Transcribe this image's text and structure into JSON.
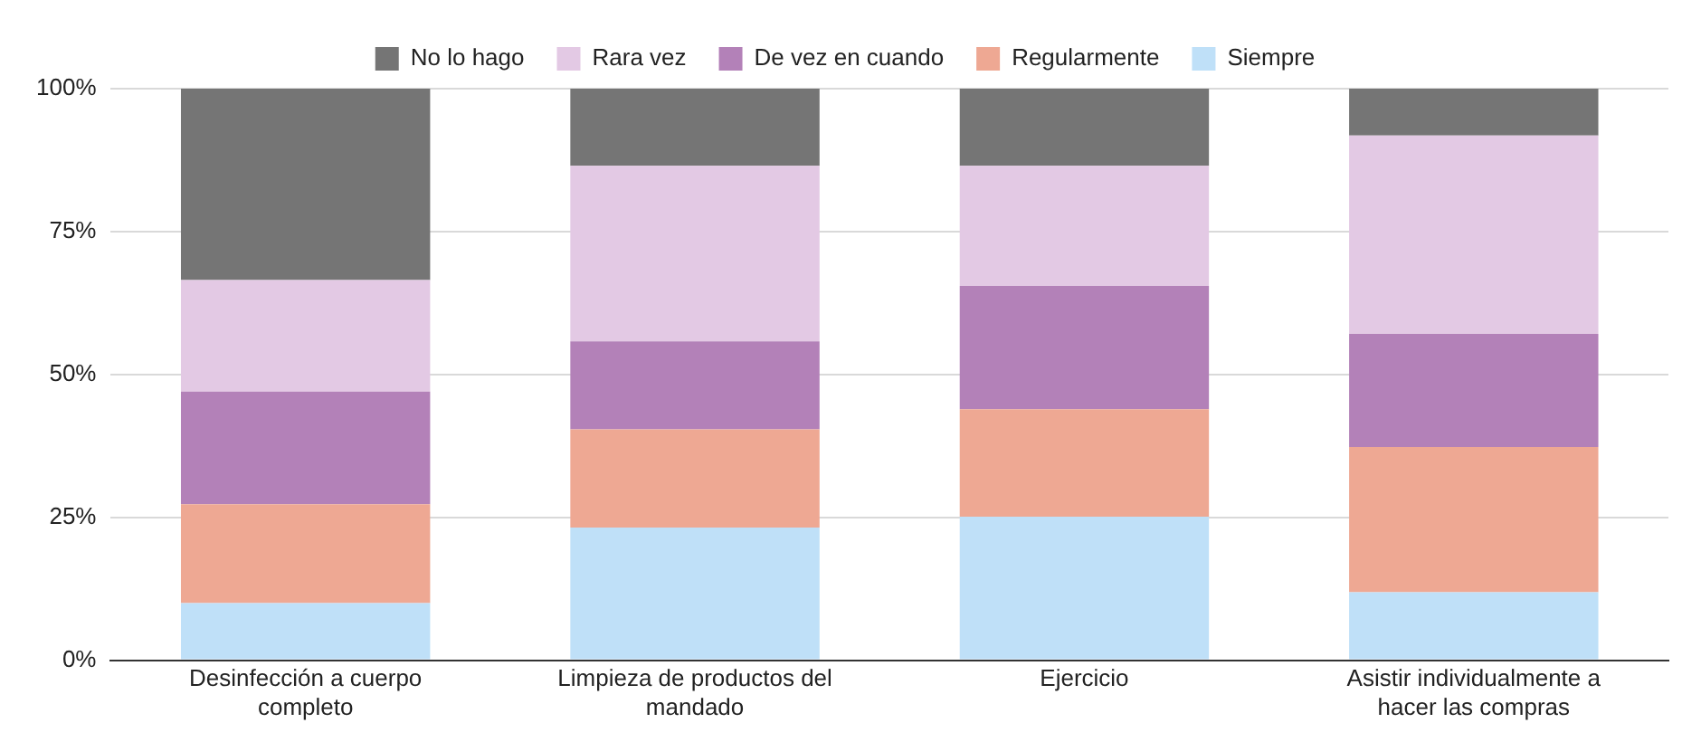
{
  "chart_data": {
    "type": "bar",
    "stacked": true,
    "legend": "top",
    "grid": "y",
    "categories": [
      "Desinfección a cuerpo completo",
      "Limpieza de productos del mandado",
      "Ejercicio",
      "Asistir individualmente a hacer las compras"
    ],
    "ylim": [
      0,
      100
    ],
    "yticks": [
      {
        "value": 0,
        "label": "0%"
      },
      {
        "value": 25,
        "label": "25%"
      },
      {
        "value": 50,
        "label": "50%"
      },
      {
        "value": 75,
        "label": "75%"
      },
      {
        "value": 100,
        "label": "100%"
      }
    ],
    "series": [
      {
        "name": "Siempre",
        "color": "#bfe0f8",
        "values": [
          10,
          23.2,
          25.1,
          11.9
        ]
      },
      {
        "name": "Regularmente",
        "color": "#eea893",
        "values": [
          17.3,
          17.2,
          18.8,
          25.4
        ]
      },
      {
        "name": "De vez en cuando",
        "color": "#b381b8",
        "values": [
          19.7,
          15.4,
          21.6,
          19.8
        ]
      },
      {
        "name": "Rara vez",
        "color": "#e3c9e4",
        "values": [
          19.5,
          30.7,
          21,
          34.7
        ]
      },
      {
        "name": "No lo hago",
        "color": "#757575",
        "values": [
          33.5,
          13.5,
          13.5,
          8.2
        ]
      }
    ]
  }
}
